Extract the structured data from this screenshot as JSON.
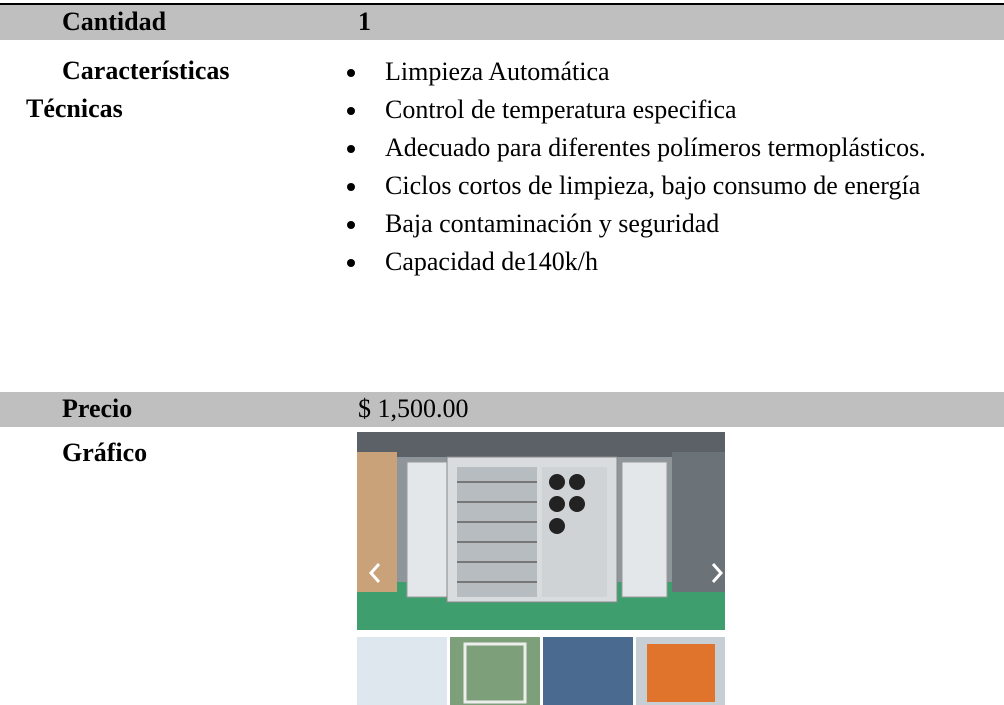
{
  "cantidad": {
    "label": "Cantidad",
    "value": "1"
  },
  "caracteristicas": {
    "label_lines": [
      "Características",
      "Técnicas"
    ],
    "items": [
      "Limpieza Automática",
      "Control de temperatura especifica",
      "Adecuado para diferentes polímeros termoplásticos.",
      "Ciclos cortos de limpieza, bajo consumo de energía",
      "Baja contaminación y seguridad",
      "Capacidad de140k/h"
    ]
  },
  "precio": {
    "label": "Precio",
    "value": "$ 1,500.00"
  },
  "grafico": {
    "label": "Gráfico"
  }
}
